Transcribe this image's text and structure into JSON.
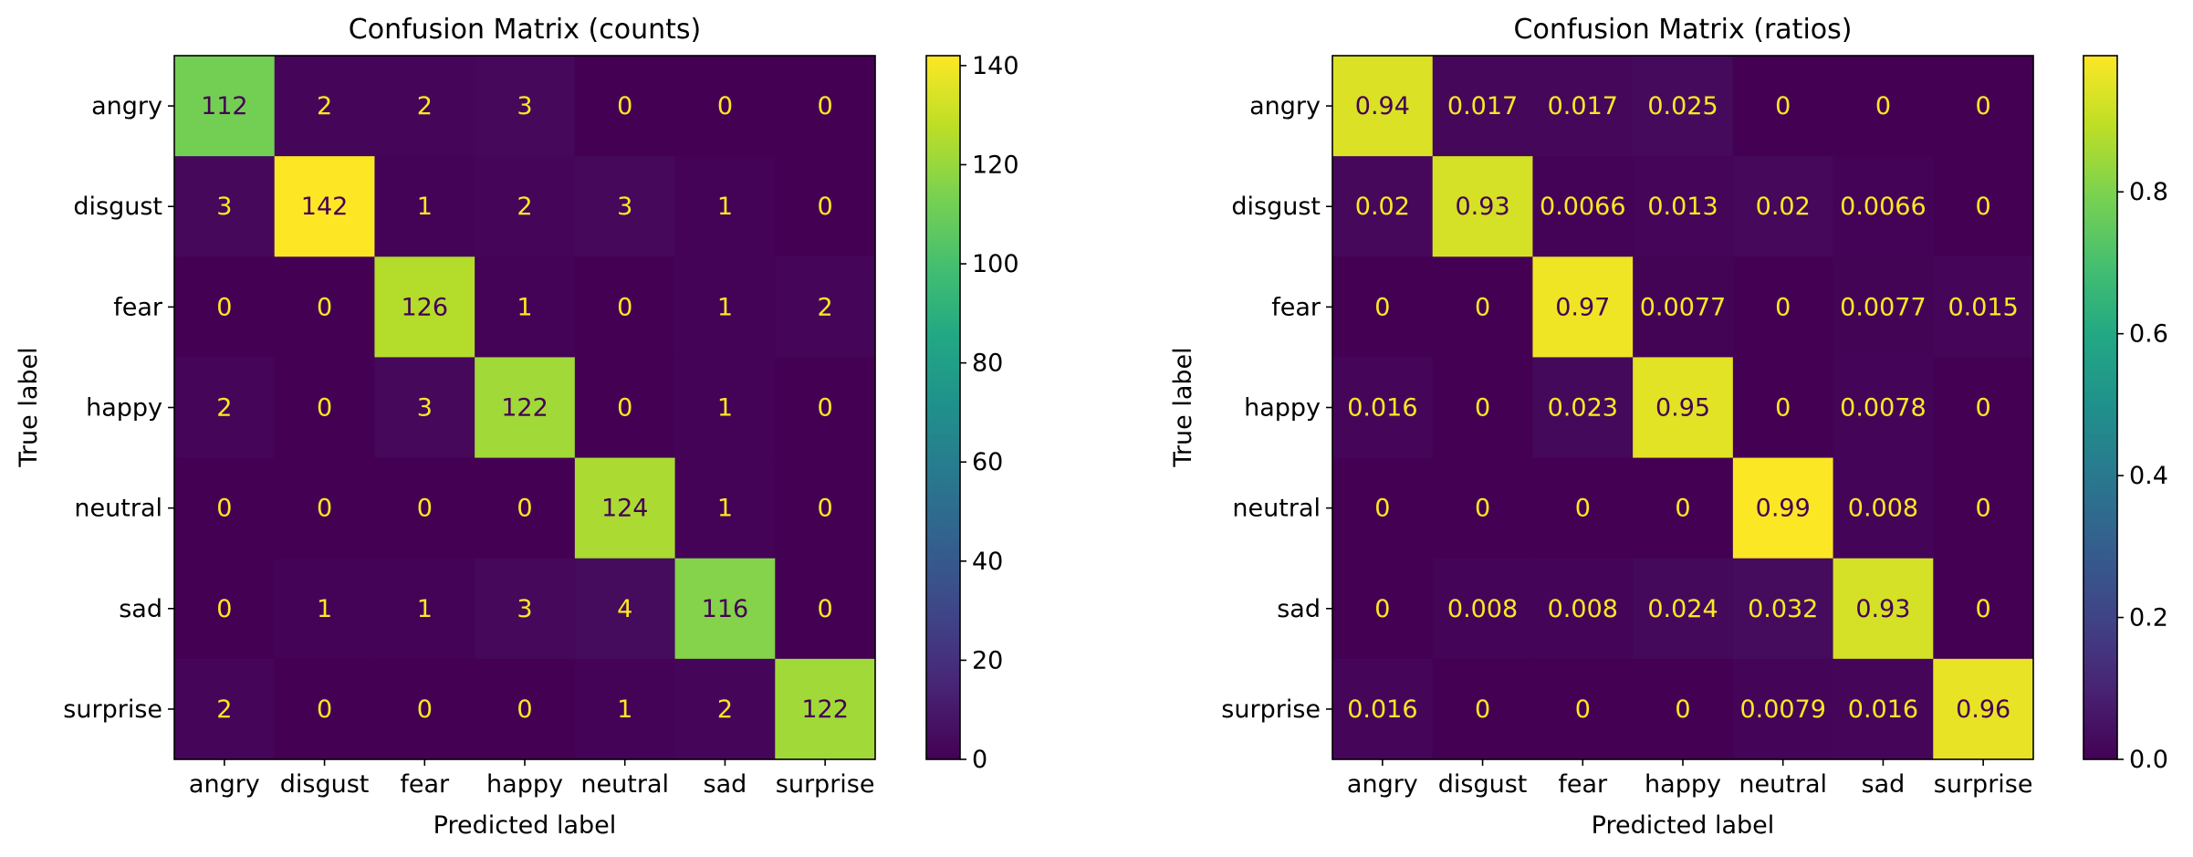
{
  "chart_data": [
    {
      "type": "heatmap",
      "title": "Confusion Matrix (counts)",
      "xlabel": "Predicted label",
      "ylabel": "True label",
      "x_categories": [
        "angry",
        "disgust",
        "fear",
        "happy",
        "neutral",
        "sad",
        "surprise"
      ],
      "y_categories": [
        "angry",
        "disgust",
        "fear",
        "happy",
        "neutral",
        "sad",
        "surprise"
      ],
      "values": [
        [
          112,
          2,
          2,
          3,
          0,
          0,
          0
        ],
        [
          3,
          142,
          1,
          2,
          3,
          1,
          0
        ],
        [
          0,
          0,
          126,
          1,
          0,
          1,
          2
        ],
        [
          2,
          0,
          3,
          122,
          0,
          1,
          0
        ],
        [
          0,
          0,
          0,
          0,
          124,
          1,
          0
        ],
        [
          0,
          1,
          1,
          3,
          4,
          116,
          0
        ],
        [
          2,
          0,
          0,
          0,
          1,
          2,
          122
        ]
      ],
      "value_labels": [
        [
          "112",
          "2",
          "2",
          "3",
          "0",
          "0",
          "0"
        ],
        [
          "3",
          "142",
          "1",
          "2",
          "3",
          "1",
          "0"
        ],
        [
          "0",
          "0",
          "126",
          "1",
          "0",
          "1",
          "2"
        ],
        [
          "2",
          "0",
          "3",
          "122",
          "0",
          "1",
          "0"
        ],
        [
          "0",
          "0",
          "0",
          "0",
          "124",
          "1",
          "0"
        ],
        [
          "0",
          "1",
          "1",
          "3",
          "4",
          "116",
          "0"
        ],
        [
          "2",
          "0",
          "0",
          "0",
          "1",
          "2",
          "122"
        ]
      ],
      "colormap": "viridis",
      "color_range": [
        0,
        142
      ],
      "colorbar_ticks": [
        0,
        20,
        40,
        60,
        80,
        100,
        120,
        140
      ],
      "colorbar_tick_labels": [
        "0",
        "20",
        "40",
        "60",
        "80",
        "100",
        "120",
        "140"
      ]
    },
    {
      "type": "heatmap",
      "title": "Confusion Matrix (ratios)",
      "xlabel": "Predicted label",
      "ylabel": "True label",
      "x_categories": [
        "angry",
        "disgust",
        "fear",
        "happy",
        "neutral",
        "sad",
        "surprise"
      ],
      "y_categories": [
        "angry",
        "disgust",
        "fear",
        "happy",
        "neutral",
        "sad",
        "surprise"
      ],
      "values": [
        [
          0.94,
          0.017,
          0.017,
          0.025,
          0,
          0,
          0
        ],
        [
          0.02,
          0.93,
          0.0066,
          0.013,
          0.02,
          0.0066,
          0
        ],
        [
          0,
          0,
          0.97,
          0.0077,
          0,
          0.0077,
          0.015
        ],
        [
          0.016,
          0,
          0.023,
          0.95,
          0,
          0.0078,
          0
        ],
        [
          0,
          0,
          0,
          0,
          0.99,
          0.008,
          0
        ],
        [
          0,
          0.008,
          0.008,
          0.024,
          0.032,
          0.93,
          0
        ],
        [
          0.016,
          0,
          0,
          0,
          0.0079,
          0.016,
          0.96
        ]
      ],
      "value_labels": [
        [
          "0.94",
          "0.017",
          "0.017",
          "0.025",
          "0",
          "0",
          "0"
        ],
        [
          "0.02",
          "0.93",
          "0.0066",
          "0.013",
          "0.02",
          "0.0066",
          "0"
        ],
        [
          "0",
          "0",
          "0.97",
          "0.0077",
          "0",
          "0.0077",
          "0.015"
        ],
        [
          "0.016",
          "0",
          "0.023",
          "0.95",
          "0",
          "0.0078",
          "0"
        ],
        [
          "0",
          "0",
          "0",
          "0",
          "0.99",
          "0.008",
          "0"
        ],
        [
          "0",
          "0.008",
          "0.008",
          "0.024",
          "0.032",
          "0.93",
          "0"
        ],
        [
          "0.016",
          "0",
          "0",
          "0",
          "0.0079",
          "0.016",
          "0.96"
        ]
      ],
      "colormap": "viridis",
      "color_range": [
        0,
        0.992
      ],
      "colorbar_ticks": [
        0,
        0.2,
        0.4,
        0.6,
        0.8
      ],
      "colorbar_tick_labels": [
        "0.0",
        "0.2",
        "0.4",
        "0.6",
        "0.8"
      ]
    }
  ]
}
